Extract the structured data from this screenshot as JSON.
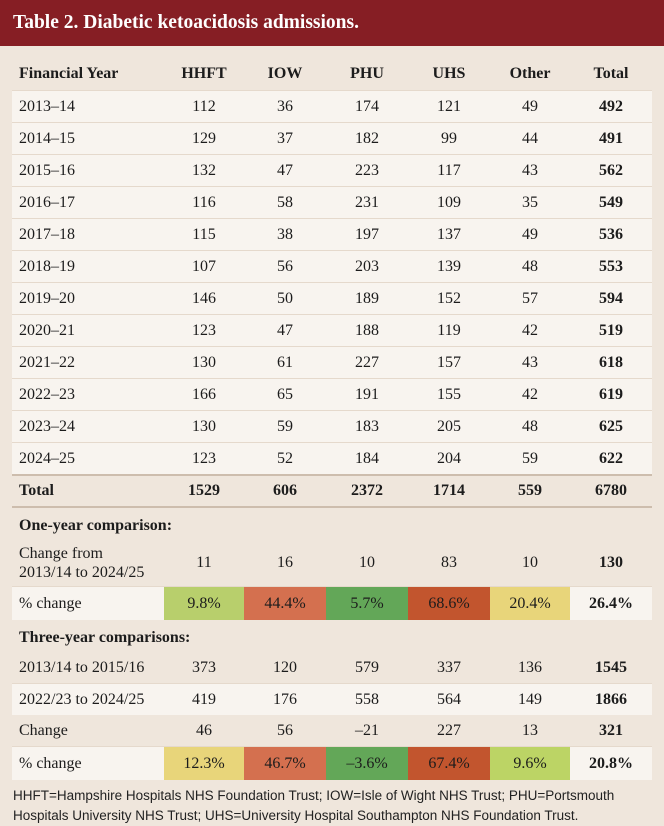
{
  "title": "Table 2. Diabetic ketoacidosis admissions.",
  "columns": [
    "Financial Year",
    "HHFT",
    "IOW",
    "PHU",
    "UHS",
    "Other",
    "Total"
  ],
  "rows": [
    {
      "year": "2013–14",
      "hhft": "112",
      "iow": "36",
      "phu": "174",
      "uhs": "121",
      "other": "49",
      "total": "492"
    },
    {
      "year": "2014–15",
      "hhft": "129",
      "iow": "37",
      "phu": "182",
      "uhs": "99",
      "other": "44",
      "total": "491"
    },
    {
      "year": "2015–16",
      "hhft": "132",
      "iow": "47",
      "phu": "223",
      "uhs": "117",
      "other": "43",
      "total": "562"
    },
    {
      "year": "2016–17",
      "hhft": "116",
      "iow": "58",
      "phu": "231",
      "uhs": "109",
      "other": "35",
      "total": "549"
    },
    {
      "year": "2017–18",
      "hhft": "115",
      "iow": "38",
      "phu": "197",
      "uhs": "137",
      "other": "49",
      "total": "536"
    },
    {
      "year": "2018–19",
      "hhft": "107",
      "iow": "56",
      "phu": "203",
      "uhs": "139",
      "other": "48",
      "total": "553"
    },
    {
      "year": "2019–20",
      "hhft": "146",
      "iow": "50",
      "phu": "189",
      "uhs": "152",
      "other": "57",
      "total": "594"
    },
    {
      "year": "2020–21",
      "hhft": "123",
      "iow": "47",
      "phu": "188",
      "uhs": "119",
      "other": "42",
      "total": "519"
    },
    {
      "year": "2021–22",
      "hhft": "130",
      "iow": "61",
      "phu": "227",
      "uhs": "157",
      "other": "43",
      "total": "618"
    },
    {
      "year": "2022–23",
      "hhft": "166",
      "iow": "65",
      "phu": "191",
      "uhs": "155",
      "other": "42",
      "total": "619"
    },
    {
      "year": "2023–24",
      "hhft": "130",
      "iow": "59",
      "phu": "183",
      "uhs": "205",
      "other": "48",
      "total": "625"
    },
    {
      "year": "2024–25",
      "hhft": "123",
      "iow": "52",
      "phu": "184",
      "uhs": "204",
      "other": "59",
      "total": "622"
    }
  ],
  "total_row": {
    "label": "Total",
    "hhft": "1529",
    "iow": "606",
    "phu": "2372",
    "uhs": "1714",
    "other": "559",
    "total": "6780"
  },
  "one_year": {
    "heading": "One-year comparison:",
    "change_label_1": "Change from",
    "change_label_2": "2013/14 to 2024/25",
    "change": {
      "hhft": "11",
      "iow": "16",
      "phu": "10",
      "uhs": "83",
      "other": "10",
      "total": "130"
    },
    "pct_label": "% change",
    "pct": {
      "hhft": "9.8%",
      "iow": "44.4%",
      "phu": "5.7%",
      "uhs": "68.6%",
      "other": "20.4%",
      "total": "26.4%"
    }
  },
  "three_year": {
    "heading": "Three-year comparisons:",
    "rows": [
      {
        "label": "2013/14 to 2015/16",
        "hhft": "373",
        "iow": "120",
        "phu": "579",
        "uhs": "337",
        "other": "136",
        "total": "1545"
      },
      {
        "label": "2022/23 to 2024/25",
        "hhft": "419",
        "iow": "176",
        "phu": "558",
        "uhs": "564",
        "other": "149",
        "total": "1866"
      },
      {
        "label": "Change",
        "hhft": "46",
        "iow": "56",
        "phu": "–21",
        "uhs": "227",
        "other": "13",
        "total": "321"
      }
    ],
    "pct_label": "% change",
    "pct": {
      "hhft": "12.3%",
      "iow": "46.7%",
      "phu": "–3.6%",
      "uhs": "67.4%",
      "other": "9.6%",
      "total": "20.8%"
    }
  },
  "footnote_line1": "HHFT=Hampshire Hospitals NHS Foundation Trust; IOW=Isle of Wight NHS Trust; PHU=Portsmouth",
  "footnote_line2": "Hospitals University NHS Trust; UHS=University Hospital Southampton NHS Foundation Trust.",
  "colors": {
    "title_bg": "#861e24",
    "page_bg": "#efe6dc",
    "light_green": "#b8cf6c",
    "orange": "#d4704f",
    "green": "#63a758",
    "dark_orange": "#c2552e",
    "yellow": "#e8d57a"
  }
}
